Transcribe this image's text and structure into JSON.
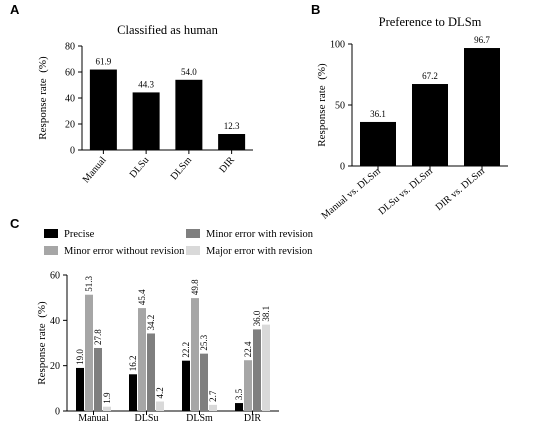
{
  "chart_data": [
    {
      "id": "A",
      "panel_letter": "A",
      "type": "bar",
      "title": "Classified as human",
      "ylabel": "Response rate  (%)",
      "xlabel": "",
      "categories": [
        "Manual",
        "DLSu",
        "DLSm",
        "DIR"
      ],
      "values": [
        61.9,
        44.3,
        54.0,
        12.3
      ],
      "value_labels": [
        "61.9",
        "44.3",
        "54.0",
        "12.3"
      ],
      "ylim": [
        0,
        80
      ],
      "yticks": [
        0,
        20,
        40,
        60,
        80
      ],
      "bar_color": "#000000",
      "grid": false
    },
    {
      "id": "B",
      "panel_letter": "B",
      "type": "bar",
      "title": "Preference to DLSm",
      "ylabel": "Response rate  (%)",
      "xlabel": "",
      "categories": [
        "Manual vs. DLSm",
        "DLSu vs. DLSm",
        "DIR vs. DLSm"
      ],
      "values": [
        36.1,
        67.2,
        96.7
      ],
      "value_labels": [
        "36.1",
        "67.2",
        "96.7"
      ],
      "ylim": [
        0,
        100
      ],
      "yticks": [
        0,
        50,
        100
      ],
      "bar_color": "#000000",
      "grid": false
    },
    {
      "id": "C",
      "panel_letter": "C",
      "type": "bar",
      "title": "",
      "ylabel": "Response rate  (%)",
      "xlabel": "",
      "categories": [
        "Manual",
        "DLSu",
        "DLSm",
        "DIR"
      ],
      "series": [
        {
          "name": "Precise",
          "color": "#000000",
          "values": [
            19.0,
            16.2,
            22.2,
            3.5
          ],
          "value_labels": [
            "19.0",
            "16.2",
            "22.2",
            "3.5"
          ]
        },
        {
          "name": "Minor error without revision",
          "color": "#a6a6a6",
          "values": [
            51.3,
            45.4,
            49.8,
            22.4
          ],
          "value_labels": [
            "51.3",
            "45.4",
            "49.8",
            "22.4"
          ]
        },
        {
          "name": "Minor error with revision",
          "color": "#7f7f7f",
          "values": [
            27.8,
            34.2,
            25.3,
            36.0
          ],
          "value_labels": [
            "27.8",
            "34.2",
            "25.3",
            "36.0"
          ]
        },
        {
          "name": "Major error with revision",
          "color": "#d9d9d9",
          "values": [
            1.9,
            4.2,
            2.7,
            38.1
          ],
          "value_labels": [
            "1.9",
            "4.2",
            "2.7",
            "38.1"
          ]
        }
      ],
      "ylim": [
        0,
        60
      ],
      "yticks": [
        0,
        20,
        40,
        60
      ],
      "legend_position": "top",
      "grid": false
    }
  ]
}
